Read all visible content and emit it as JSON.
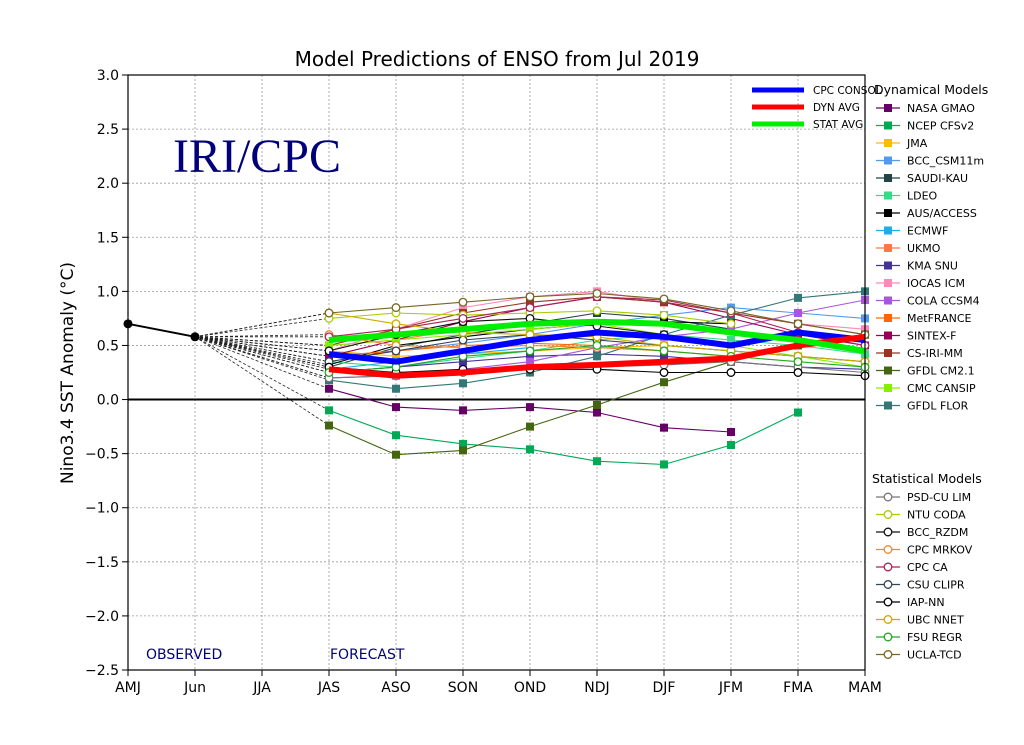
{
  "chart_data": {
    "type": "line",
    "title": "Model Predictions of ENSO from Jul 2019",
    "ylabel": "Nino3.4 SST Anomaly (°C)",
    "watermark": "IRI/CPC",
    "observed_label": "OBSERVED",
    "forecast_label": "FORECAST",
    "categories": [
      "AMJ",
      "Jun",
      "JJA",
      "JAS",
      "ASO",
      "SON",
      "OND",
      "NDJ",
      "DJF",
      "JFM",
      "FMA",
      "MAM"
    ],
    "ylim": [
      -2.5,
      3.0
    ],
    "yticks": [
      "3.0",
      "2.5",
      "2.0",
      "1.5",
      "1.0",
      "0.5",
      "0.0",
      "−0.5",
      "−1.0",
      "−1.5",
      "−2.0",
      "−2.5"
    ],
    "grid": true,
    "observed": [
      0.7,
      0.58
    ],
    "forecast_start_value": 0.58,
    "consensus": [
      {
        "name": "CPC CONSOL",
        "color": "#0000ff",
        "values": [
          null,
          null,
          null,
          0.42,
          0.35,
          0.45,
          0.55,
          0.62,
          0.58,
          0.5,
          0.62,
          0.55
        ]
      },
      {
        "name": "DYN AVG",
        "color": "#ff0000",
        "values": [
          null,
          null,
          null,
          0.28,
          0.22,
          0.25,
          0.3,
          0.32,
          0.35,
          0.38,
          0.5,
          0.58
        ]
      },
      {
        "name": "STAT AVG",
        "color": "#00ee00",
        "values": [
          null,
          null,
          null,
          0.55,
          0.6,
          0.65,
          0.7,
          0.72,
          0.7,
          0.62,
          0.55,
          0.45
        ]
      }
    ],
    "dynamical_title": "Dynamical Models",
    "dynamical": [
      {
        "name": "NASA GMAO",
        "color": "#660066",
        "values": [
          null,
          null,
          null,
          0.1,
          -0.07,
          -0.1,
          -0.07,
          -0.12,
          -0.26,
          -0.3,
          null,
          null
        ]
      },
      {
        "name": "NCEP CFSv2",
        "color": "#00aa55",
        "values": [
          null,
          null,
          null,
          -0.1,
          -0.33,
          -0.41,
          -0.46,
          -0.57,
          -0.6,
          -0.42,
          -0.12,
          null
        ]
      },
      {
        "name": "JMA",
        "color": "#ffbb00",
        "values": [
          null,
          null,
          null,
          0.45,
          0.4,
          0.42,
          0.45,
          0.48,
          0.5,
          null,
          null,
          null
        ]
      },
      {
        "name": "BCC_CSM11m",
        "color": "#5599ee",
        "values": [
          null,
          null,
          null,
          0.4,
          0.45,
          0.52,
          0.6,
          0.7,
          0.78,
          0.85,
          0.8,
          0.75
        ]
      },
      {
        "name": "SAUDI-KAU",
        "color": "#224444",
        "values": [
          null,
          null,
          null,
          0.3,
          0.48,
          0.6,
          0.7,
          0.8,
          0.75,
          0.65,
          null,
          null
        ]
      },
      {
        "name": "LDEO",
        "color": "#33dd88",
        "values": [
          null,
          null,
          null,
          0.35,
          0.3,
          0.38,
          0.45,
          0.55,
          0.6,
          0.55,
          0.5,
          0.42
        ]
      },
      {
        "name": "AUS/ACCESS",
        "color": "#000000",
        "values": [
          null,
          null,
          null,
          0.32,
          0.5,
          0.58,
          0.65,
          0.7,
          0.72,
          0.7,
          null,
          null
        ]
      },
      {
        "name": "ECMWF",
        "color": "#22aaee",
        "values": [
          null,
          null,
          null,
          0.28,
          0.35,
          0.42,
          0.48,
          null,
          null,
          null,
          null,
          null
        ]
      },
      {
        "name": "UKMO",
        "color": "#ff7744",
        "values": [
          null,
          null,
          null,
          0.5,
          0.55,
          0.65,
          0.72,
          null,
          null,
          null,
          null,
          null
        ]
      },
      {
        "name": "KMA SNU",
        "color": "#443399",
        "values": [
          null,
          null,
          null,
          0.25,
          0.3,
          0.35,
          0.4,
          0.42,
          0.4,
          0.35,
          0.3,
          0.28
        ]
      },
      {
        "name": "IOCAS ICM",
        "color": "#ff88bb",
        "values": [
          null,
          null,
          null,
          0.45,
          0.65,
          0.85,
          0.95,
          1.0,
          0.9,
          0.8,
          0.7,
          0.65
        ]
      },
      {
        "name": "COLA CCSM4",
        "color": "#aa55dd",
        "values": [
          null,
          null,
          null,
          0.2,
          0.22,
          0.28,
          0.35,
          0.48,
          0.58,
          0.65,
          0.8,
          0.92
        ]
      },
      {
        "name": "MetFRANCE",
        "color": "#ff6600",
        "values": [
          null,
          null,
          null,
          0.4,
          0.45,
          0.5,
          0.52,
          0.5,
          null,
          null,
          null,
          null
        ]
      },
      {
        "name": "SINTEX-F",
        "color": "#990055",
        "values": [
          null,
          null,
          null,
          0.4,
          0.55,
          0.72,
          0.85,
          0.95,
          0.9,
          0.75,
          0.6,
          0.5
        ]
      },
      {
        "name": "CS-IRI-MM",
        "color": "#993322",
        "values": [
          null,
          null,
          null,
          0.5,
          0.65,
          0.8,
          0.9,
          0.95,
          0.9,
          0.8,
          0.7,
          0.6
        ]
      },
      {
        "name": "GFDL CM2.1",
        "color": "#446611",
        "values": [
          null,
          null,
          null,
          -0.24,
          -0.51,
          -0.47,
          -0.25,
          -0.05,
          0.16,
          0.35,
          0.5,
          0.6
        ]
      },
      {
        "name": "CMC CANSIP",
        "color": "#88ee00",
        "values": [
          null,
          null,
          null,
          0.5,
          0.55,
          0.6,
          0.65,
          0.7,
          0.6,
          0.5,
          0.4,
          0.3
        ]
      },
      {
        "name": "GFDL FLOR",
        "color": "#337777",
        "values": [
          null,
          null,
          null,
          0.18,
          0.1,
          0.15,
          0.25,
          0.4,
          0.6,
          0.78,
          0.94,
          1.0
        ]
      }
    ],
    "statistical_title": "Statistical Models",
    "statistical": [
      {
        "name": "PSD-CU LIM",
        "color": "#777777",
        "values": [
          null,
          null,
          null,
          0.2,
          0.22,
          0.25,
          0.28,
          0.3,
          0.32,
          0.35,
          0.3,
          0.25
        ]
      },
      {
        "name": "NTU CODA",
        "color": "#aacc00",
        "values": [
          null,
          null,
          null,
          0.75,
          0.8,
          0.78,
          0.8,
          0.82,
          0.78,
          0.7,
          null,
          null
        ]
      },
      {
        "name": "BCC_RZDM",
        "color": "#111111",
        "values": [
          null,
          null,
          null,
          0.45,
          0.6,
          0.72,
          0.75,
          0.68,
          0.6,
          null,
          null,
          null
        ]
      },
      {
        "name": "CPC MRKOV",
        "color": "#ee8833",
        "values": [
          null,
          null,
          null,
          0.6,
          0.5,
          0.48,
          0.5,
          0.48,
          0.45,
          0.4,
          null,
          null
        ]
      },
      {
        "name": "CPC CA",
        "color": "#aa2255",
        "values": [
          null,
          null,
          null,
          0.58,
          0.65,
          0.75,
          0.85,
          0.95,
          0.92,
          0.8,
          0.62,
          0.5
        ]
      },
      {
        "name": "CSU CLIPR",
        "color": "#334455",
        "values": [
          null,
          null,
          null,
          0.35,
          0.45,
          0.55,
          0.6,
          0.55,
          0.5,
          0.45,
          0.4,
          0.35
        ]
      },
      {
        "name": "IAP-NN",
        "color": "#000000",
        "values": [
          null,
          null,
          null,
          0.3,
          0.25,
          0.28,
          0.28,
          0.28,
          0.25,
          0.25,
          0.25,
          0.22
        ]
      },
      {
        "name": "UBC NNET",
        "color": "#ccaa00",
        "values": [
          null,
          null,
          null,
          0.8,
          0.7,
          0.62,
          0.6,
          0.58,
          0.5,
          0.45,
          0.4,
          0.35
        ]
      },
      {
        "name": "FSU REGR",
        "color": "#22aa22",
        "values": [
          null,
          null,
          null,
          0.25,
          0.3,
          0.4,
          0.45,
          0.5,
          0.45,
          0.4,
          0.35,
          0.3
        ]
      },
      {
        "name": "UCLA-TCD",
        "color": "#776622",
        "values": [
          null,
          null,
          null,
          0.8,
          0.85,
          0.9,
          0.95,
          0.98,
          0.93,
          0.82,
          0.7,
          0.6
        ]
      }
    ]
  }
}
